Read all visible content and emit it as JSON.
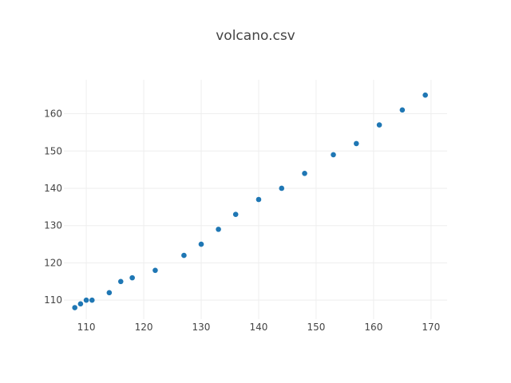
{
  "chart_data": {
    "type": "scatter",
    "title": "volcano.csv",
    "xlabel": "",
    "ylabel": "",
    "xlim": [
      106.1,
      172.8
    ],
    "ylim": [
      104.9,
      169.1
    ],
    "x_ticks": [
      110,
      120,
      130,
      140,
      150,
      160,
      170
    ],
    "y_ticks": [
      110,
      120,
      130,
      140,
      150,
      160
    ],
    "grid": true,
    "marker_color": "#1f77b4",
    "series": [
      {
        "x": [
          108,
          109,
          110,
          111,
          114,
          116,
          118,
          122,
          127,
          130,
          133,
          136,
          140,
          144,
          148,
          153,
          157,
          161,
          165,
          169
        ],
        "y": [
          108,
          109,
          110,
          110,
          112,
          115,
          116,
          118,
          122,
          125,
          129,
          133,
          137,
          140,
          144,
          149,
          152,
          157,
          161,
          165
        ]
      }
    ]
  }
}
